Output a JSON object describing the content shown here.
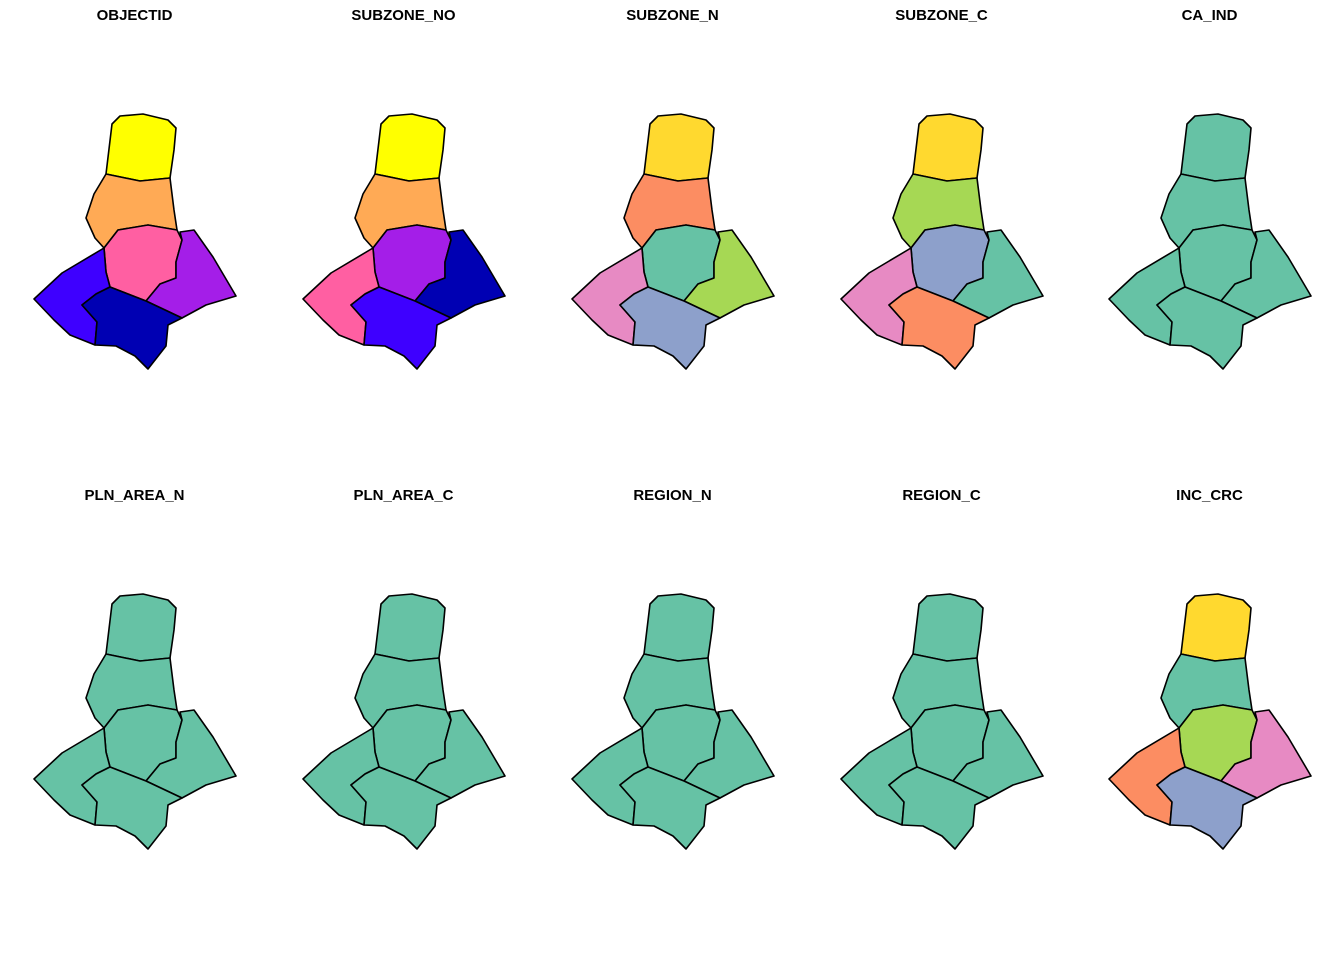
{
  "plot": {
    "zones": [
      "north",
      "mid-north",
      "center",
      "east",
      "west",
      "south"
    ],
    "panels": [
      {
        "title": "OBJECTID",
        "fills": {
          "north": "#FFFF00",
          "mid-north": "#FFAA55",
          "center": "#FF5FA2",
          "east": "#A41EE8",
          "west": "#3E00FF",
          "south": "#0000B3"
        }
      },
      {
        "title": "SUBZONE_NO",
        "fills": {
          "north": "#FFFF00",
          "mid-north": "#FFAA55",
          "center": "#A41EE8",
          "east": "#0000B3",
          "west": "#FF5FA2",
          "south": "#3E00FF"
        }
      },
      {
        "title": "SUBZONE_N",
        "fills": {
          "north": "#FFD92F",
          "mid-north": "#FC8D62",
          "center": "#66C2A5",
          "east": "#A6D854",
          "west": "#E78AC3",
          "south": "#8DA0CB"
        }
      },
      {
        "title": "SUBZONE_C",
        "fills": {
          "north": "#FFD92F",
          "mid-north": "#A6D854",
          "center": "#8DA0CB",
          "east": "#66C2A5",
          "west": "#E78AC3",
          "south": "#FC8D62"
        }
      },
      {
        "title": "CA_IND",
        "fills": {
          "north": "#66C2A5",
          "mid-north": "#66C2A5",
          "center": "#66C2A5",
          "east": "#66C2A5",
          "west": "#66C2A5",
          "south": "#66C2A5"
        }
      },
      {
        "title": "PLN_AREA_N",
        "fills": {
          "north": "#66C2A5",
          "mid-north": "#66C2A5",
          "center": "#66C2A5",
          "east": "#66C2A5",
          "west": "#66C2A5",
          "south": "#66C2A5"
        }
      },
      {
        "title": "PLN_AREA_C",
        "fills": {
          "north": "#66C2A5",
          "mid-north": "#66C2A5",
          "center": "#66C2A5",
          "east": "#66C2A5",
          "west": "#66C2A5",
          "south": "#66C2A5"
        }
      },
      {
        "title": "REGION_N",
        "fills": {
          "north": "#66C2A5",
          "mid-north": "#66C2A5",
          "center": "#66C2A5",
          "east": "#66C2A5",
          "west": "#66C2A5",
          "south": "#66C2A5"
        }
      },
      {
        "title": "REGION_C",
        "fills": {
          "north": "#66C2A5",
          "mid-north": "#66C2A5",
          "center": "#66C2A5",
          "east": "#66C2A5",
          "west": "#66C2A5",
          "south": "#66C2A5"
        }
      },
      {
        "title": "INC_CRC",
        "fills": {
          "north": "#FFD92F",
          "mid-north": "#66C2A5",
          "center": "#A6D854",
          "east": "#E78AC3",
          "west": "#FC8D62",
          "south": "#8DA0CB"
        }
      }
    ]
  }
}
